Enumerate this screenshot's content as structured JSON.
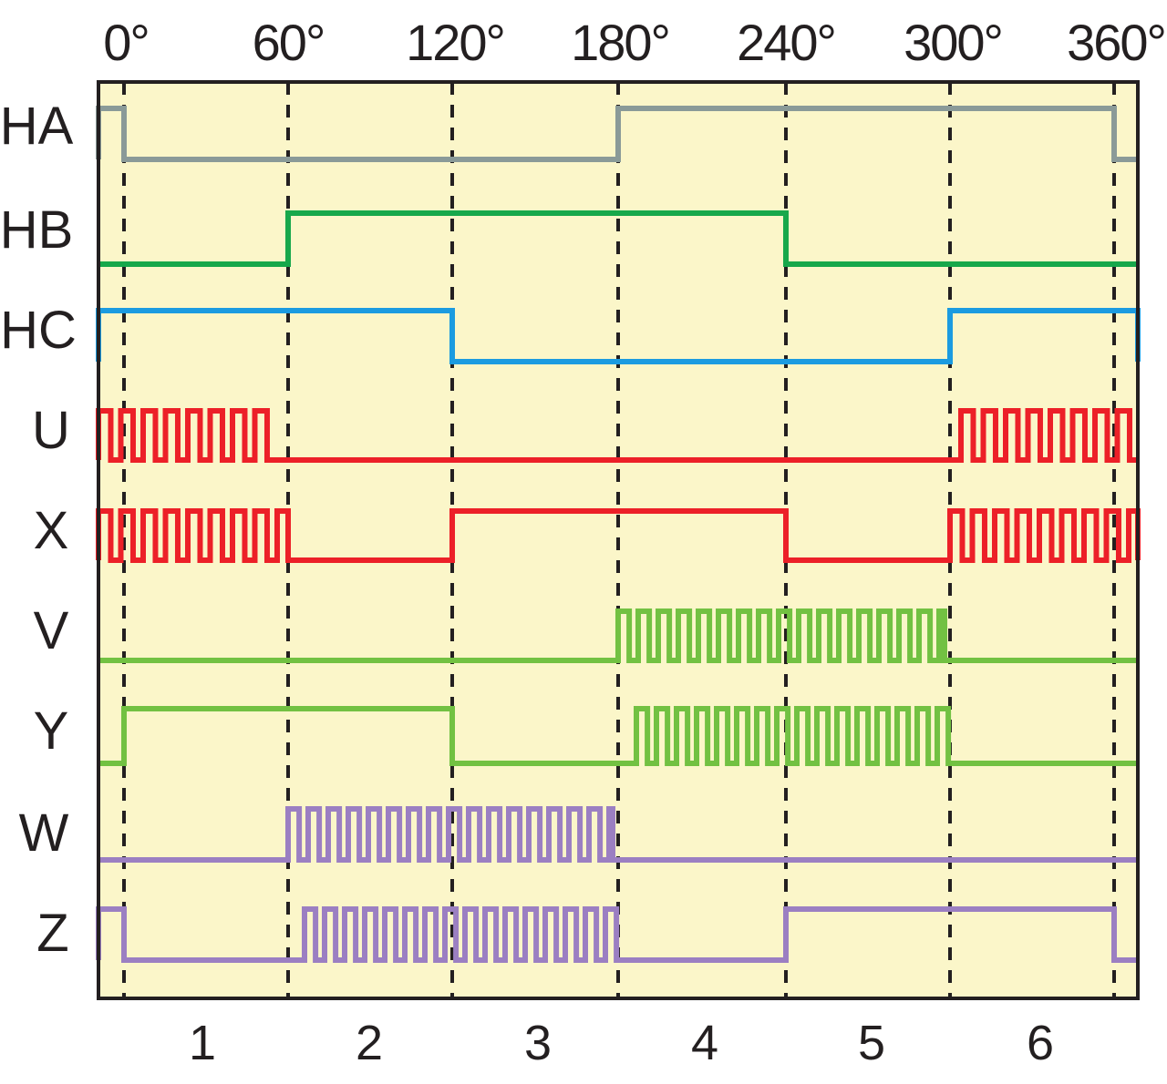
{
  "diagram": {
    "background": "#fbf6c9",
    "frame_color": "#231f20",
    "angle_labels": [
      "0°",
      "60°",
      "120°",
      "180°",
      "240°",
      "300°",
      "360°"
    ],
    "sector_labels": [
      "1",
      "2",
      "3",
      "4",
      "5",
      "6"
    ],
    "signals": [
      {
        "name": "HA",
        "color": "#8a9a98"
      },
      {
        "name": "HB",
        "color": "#17a84b"
      },
      {
        "name": "HC",
        "color": "#1b9be0"
      },
      {
        "name": "U",
        "color": "#ec2028"
      },
      {
        "name": "X",
        "color": "#ec2028"
      },
      {
        "name": "V",
        "color": "#72c142"
      },
      {
        "name": "Y",
        "color": "#72c142"
      },
      {
        "name": "W",
        "color": "#9b7fc2"
      },
      {
        "name": "Z",
        "color": "#9b7fc2"
      }
    ]
  }
}
